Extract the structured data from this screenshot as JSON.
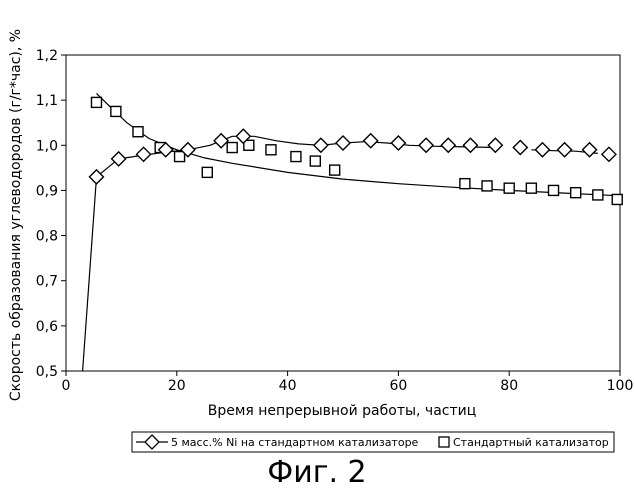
{
  "chart_data": {
    "type": "scatter",
    "xlabel": "Время непрерывной работы, частиц",
    "ylabel": "Скорость образования углеводородов (г/г*час), %",
    "xlim": [
      0,
      100
    ],
    "ylim": [
      0.5,
      1.2
    ],
    "xticks": [
      "0",
      "20",
      "40",
      "60",
      "80",
      "100"
    ],
    "yticks": [
      "0,5",
      "0,6",
      "0,7",
      "0,8",
      "0,9",
      "1,0",
      "1,1",
      "1,2"
    ],
    "grid": false,
    "legend_position": "bottom",
    "series": [
      {
        "name": "5 масс.% Ni на стандартном катализаторе",
        "marker": "diamond",
        "x": [
          5.5,
          9.5,
          14,
          18,
          22,
          28,
          32,
          46,
          50,
          55,
          60,
          65,
          69,
          73,
          77.5,
          82,
          86,
          90,
          94.5,
          98
        ],
        "y": [
          0.93,
          0.97,
          0.98,
          0.99,
          0.99,
          1.01,
          1.02,
          1.0,
          1.005,
          1.01,
          1.005,
          1.0,
          1.0,
          1.0,
          1.0,
          0.995,
          0.99,
          0.99,
          0.99,
          0.98
        ],
        "fit_line": {
          "x": [
            3,
            5.5,
            9.5,
            14,
            18,
            22,
            26,
            30,
            34,
            38,
            42,
            46,
            50,
            54,
            58,
            62,
            66,
            70,
            74,
            78
          ],
          "y": [
            0.5,
            0.93,
            0.97,
            0.978,
            0.985,
            0.99,
            1.0,
            1.02,
            1.02,
            1.01,
            1.003,
            1.0,
            1.005,
            1.008,
            1.005,
            1.0,
            0.998,
            0.997,
            0.996,
            0.995
          ]
        },
        "fit_line_2": {
          "x": [
            84,
            88,
            92,
            96
          ],
          "y": [
            0.99,
            0.988,
            0.987,
            0.982
          ]
        }
      },
      {
        "name": "Стандартный катализатор",
        "marker": "square",
        "x": [
          5.5,
          9,
          13,
          17,
          20.5,
          25.5,
          30,
          33,
          37,
          41.5,
          45,
          48.5,
          72,
          76,
          80,
          84,
          88,
          92,
          96,
          99.5
        ],
        "y": [
          1.095,
          1.075,
          1.03,
          0.995,
          0.975,
          0.94,
          0.995,
          1.0,
          0.99,
          0.975,
          0.965,
          0.945,
          0.915,
          0.91,
          0.905,
          0.905,
          0.9,
          0.895,
          0.89,
          0.88
        ],
        "fit_line": {
          "x": [
            5.5,
            8,
            11,
            15,
            20,
            25,
            30,
            40,
            50,
            60,
            70,
            80,
            90,
            100
          ],
          "y": [
            1.115,
            1.085,
            1.05,
            1.015,
            0.99,
            0.972,
            0.96,
            0.94,
            0.925,
            0.915,
            0.907,
            0.9,
            0.894,
            0.888
          ]
        }
      }
    ],
    "caption": "Фиг. 2"
  }
}
